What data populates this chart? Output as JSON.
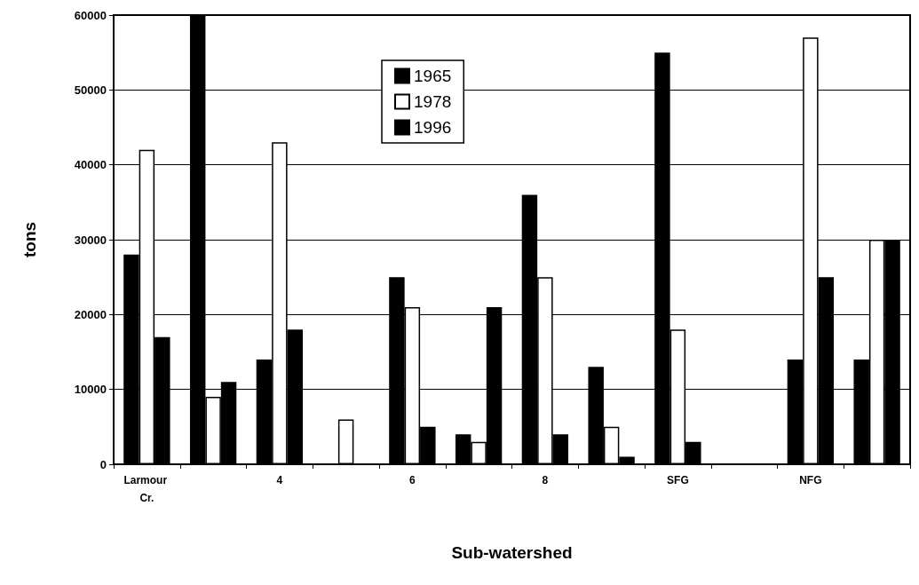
{
  "chart_data": {
    "type": "bar",
    "xlabel": "Sub-watershed",
    "ylabel": "tons",
    "categories": [
      "Larmour Cr.",
      null,
      "4",
      null,
      "6",
      null,
      "8",
      null,
      "SFG",
      null,
      "NFG",
      null
    ],
    "series": [
      {
        "name": "1965",
        "color": "#000000",
        "values": [
          28000,
          60000,
          14000,
          null,
          25000,
          4000,
          36000,
          13000,
          55000,
          null,
          14000,
          14000
        ]
      },
      {
        "name": "1978",
        "color": "#ffffff",
        "values": [
          42000,
          9000,
          43000,
          6000,
          21000,
          3000,
          25000,
          5000,
          18000,
          null,
          57000,
          30000
        ]
      },
      {
        "name": "1996",
        "color": "#000000",
        "values": [
          17000,
          11000,
          18000,
          null,
          5000,
          21000,
          4000,
          1000,
          3000,
          null,
          25000,
          30000
        ]
      }
    ],
    "ylim": [
      0,
      60000
    ],
    "yticks": [
      0,
      10000,
      20000,
      30000,
      40000,
      50000,
      60000
    ],
    "grid": "y",
    "legend": "top"
  }
}
